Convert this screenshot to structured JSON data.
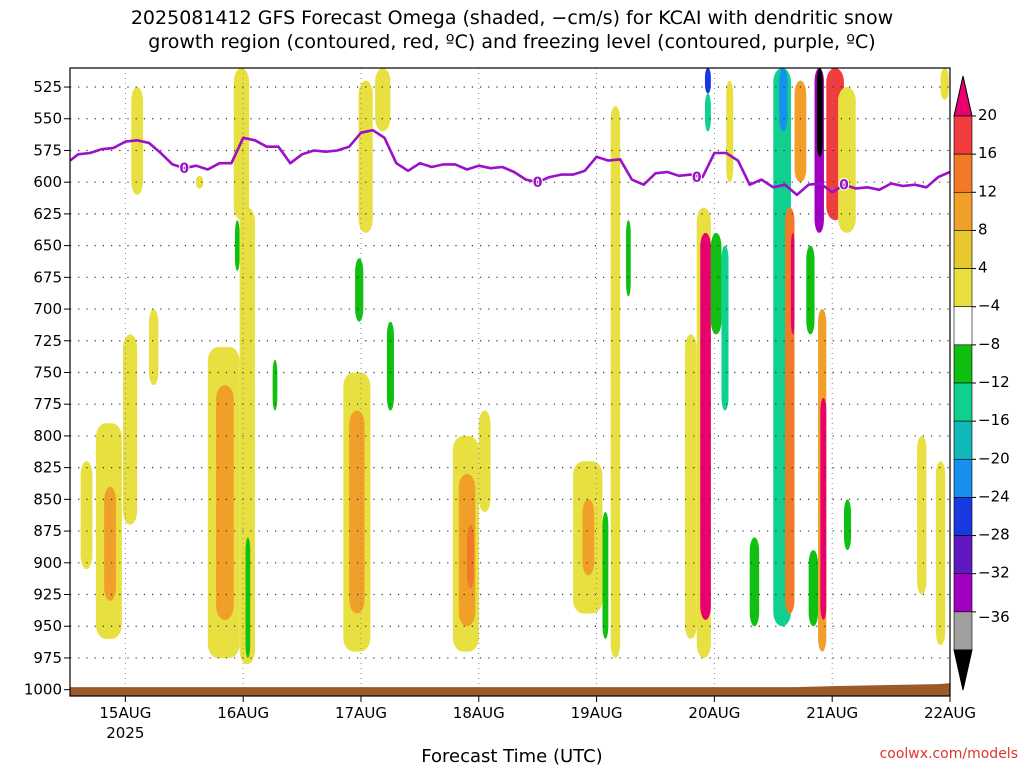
{
  "title_line1": "2025081412 GFS Forecast Omega (shaded, −cm/s) for KCAI with dendritic snow",
  "title_line2": "growth region (contoured, red, ºC) and freezing level (contoured, purple, ºC)",
  "xlabel": "Forecast Time (UTC)",
  "credit": "coolwx.com/models",
  "chart_data": {
    "type": "heatmap",
    "y_axis": {
      "label": "",
      "ticks": [
        525,
        550,
        575,
        600,
        625,
        650,
        675,
        700,
        725,
        750,
        775,
        800,
        825,
        850,
        875,
        900,
        925,
        950,
        975,
        1000
      ],
      "range": [
        510,
        1005
      ],
      "direction": "pressure (hPa) increasing downward"
    },
    "x_axis": {
      "ticks": [
        "15AUG",
        "16AUG",
        "17AUG",
        "18AUG",
        "19AUG",
        "20AUG",
        "21AUG",
        "22AUG"
      ],
      "tick_values": [
        15,
        16,
        17,
        18,
        19,
        20,
        21,
        22
      ],
      "sub_label": "2025",
      "range": [
        14.53,
        22.0
      ]
    },
    "colorbar": {
      "labels": [
        "20",
        "16",
        "12",
        "8",
        "4",
        "−4",
        "−8",
        "−12",
        "−16",
        "−20",
        "−24",
        "−28",
        "−32",
        "−36"
      ],
      "colors": [
        "#e8006e",
        "#f03c3c",
        "#f07a28",
        "#f0a028",
        "#e8c830",
        "#e8e040",
        "#ffffff",
        "#10c010",
        "#10d090",
        "#10b8b8",
        "#1890f0",
        "#1838e0",
        "#6018c0",
        "#a000c0",
        "#a0a0a0",
        "#000000"
      ]
    },
    "freezing_level_label": "0",
    "freezing_level": {
      "x": [
        14.53,
        14.6,
        14.7,
        14.8,
        14.9,
        15.0,
        15.1,
        15.2,
        15.3,
        15.4,
        15.5,
        15.6,
        15.7,
        15.8,
        15.9,
        16.0,
        16.1,
        16.2,
        16.3,
        16.4,
        16.5,
        16.6,
        16.7,
        16.8,
        16.9,
        17.0,
        17.1,
        17.2,
        17.3,
        17.4,
        17.5,
        17.6,
        17.7,
        17.8,
        17.9,
        18.0,
        18.1,
        18.2,
        18.3,
        18.4,
        18.5,
        18.6,
        18.7,
        18.8,
        18.9,
        19.0,
        19.1,
        19.2,
        19.3,
        19.4,
        19.5,
        19.6,
        19.7,
        19.8,
        19.9,
        20.0,
        20.1,
        20.2,
        20.3,
        20.4,
        20.5,
        20.6,
        20.7,
        20.8,
        20.9,
        21.0,
        21.1,
        21.2,
        21.3,
        21.4,
        21.5,
        21.6,
        21.7,
        21.8,
        21.9,
        22.0
      ],
      "y": [
        583,
        578,
        577,
        574,
        573,
        568,
        567,
        569,
        577,
        586,
        589,
        587,
        590,
        585,
        585,
        565,
        567,
        572,
        572,
        585,
        578,
        575,
        576,
        575,
        572,
        561,
        559,
        565,
        585,
        591,
        585,
        588,
        586,
        586,
        590,
        587,
        589,
        588,
        592,
        598,
        600,
        596,
        594,
        594,
        591,
        580,
        583,
        582,
        598,
        602,
        593,
        592,
        595,
        594,
        596,
        577,
        577,
        583,
        602,
        598,
        604,
        602,
        610,
        602,
        601,
        608,
        602,
        605,
        604,
        606,
        601,
        603,
        602,
        604,
        596,
        592
      ],
      "unit": "hPa"
    },
    "omega_regions": [
      {
        "x0": 14.62,
        "x1": 14.72,
        "y0": 820,
        "y1": 905,
        "value": 4
      },
      {
        "x0": 14.75,
        "x1": 14.97,
        "y0": 790,
        "y1": 960,
        "value": 4
      },
      {
        "x0": 14.82,
        "x1": 14.92,
        "y0": 840,
        "y1": 930,
        "value": 8
      },
      {
        "x0": 14.98,
        "x1": 15.1,
        "y0": 720,
        "y1": 870,
        "value": 4
      },
      {
        "x0": 15.05,
        "x1": 15.15,
        "y0": 525,
        "y1": 610,
        "value": 4
      },
      {
        "x0": 15.2,
        "x1": 15.28,
        "y0": 700,
        "y1": 760,
        "value": 4
      },
      {
        "x0": 15.6,
        "x1": 15.66,
        "y0": 595,
        "y1": 605,
        "value": -4
      },
      {
        "x0": 15.7,
        "x1": 15.97,
        "y0": 730,
        "y1": 975,
        "value": 4
      },
      {
        "x0": 15.77,
        "x1": 15.92,
        "y0": 760,
        "y1": 945,
        "value": 8
      },
      {
        "x0": 15.92,
        "x1": 16.05,
        "y0": 510,
        "y1": 630,
        "value": 4
      },
      {
        "x0": 15.93,
        "x1": 15.97,
        "y0": 630,
        "y1": 670,
        "value": -8
      },
      {
        "x0": 15.97,
        "x1": 16.1,
        "y0": 620,
        "y1": 980,
        "value": 4
      },
      {
        "x0": 16.02,
        "x1": 16.06,
        "y0": 880,
        "y1": 975,
        "value": -8
      },
      {
        "x0": 16.25,
        "x1": 16.29,
        "y0": 740,
        "y1": 780,
        "value": -8
      },
      {
        "x0": 16.85,
        "x1": 17.08,
        "y0": 750,
        "y1": 970,
        "value": 4
      },
      {
        "x0": 16.9,
        "x1": 17.03,
        "y0": 780,
        "y1": 940,
        "value": 8
      },
      {
        "x0": 16.95,
        "x1": 17.02,
        "y0": 660,
        "y1": 710,
        "value": -8
      },
      {
        "x0": 16.98,
        "x1": 17.1,
        "y0": 520,
        "y1": 640,
        "value": 4
      },
      {
        "x0": 17.12,
        "x1": 17.25,
        "y0": 510,
        "y1": 560,
        "value": 4
      },
      {
        "x0": 17.22,
        "x1": 17.28,
        "y0": 710,
        "y1": 780,
        "value": -8
      },
      {
        "x0": 17.78,
        "x1": 18.0,
        "y0": 800,
        "y1": 970,
        "value": 4
      },
      {
        "x0": 17.83,
        "x1": 17.97,
        "y0": 830,
        "y1": 950,
        "value": 8
      },
      {
        "x0": 17.9,
        "x1": 17.96,
        "y0": 870,
        "y1": 920,
        "value": 12
      },
      {
        "x0": 18.0,
        "x1": 18.1,
        "y0": 780,
        "y1": 860,
        "value": 4
      },
      {
        "x0": 18.8,
        "x1": 19.05,
        "y0": 820,
        "y1": 940,
        "value": 4
      },
      {
        "x0": 18.88,
        "x1": 18.98,
        "y0": 850,
        "y1": 910,
        "value": 8
      },
      {
        "x0": 19.05,
        "x1": 19.1,
        "y0": 860,
        "y1": 960,
        "value": -8
      },
      {
        "x0": 19.12,
        "x1": 19.2,
        "y0": 540,
        "y1": 975,
        "value": 4
      },
      {
        "x0": 19.25,
        "x1": 19.29,
        "y0": 630,
        "y1": 690,
        "value": -8
      },
      {
        "x0": 19.75,
        "x1": 19.85,
        "y0": 720,
        "y1": 960,
        "value": 4
      },
      {
        "x0": 19.85,
        "x1": 19.97,
        "y0": 620,
        "y1": 975,
        "value": 4
      },
      {
        "x0": 19.88,
        "x1": 19.97,
        "y0": 640,
        "y1": 945,
        "value": 20
      },
      {
        "x0": 19.92,
        "x1": 19.97,
        "y0": 510,
        "y1": 530,
        "value": -20
      },
      {
        "x0": 19.92,
        "x1": 19.97,
        "y0": 530,
        "y1": 560,
        "value": -12
      },
      {
        "x0": 19.97,
        "x1": 20.06,
        "y0": 640,
        "y1": 720,
        "value": -8
      },
      {
        "x0": 20.06,
        "x1": 20.12,
        "y0": 650,
        "y1": 780,
        "value": -12
      },
      {
        "x0": 20.1,
        "x1": 20.16,
        "y0": 520,
        "y1": 600,
        "value": 4
      },
      {
        "x0": 20.3,
        "x1": 20.38,
        "y0": 880,
        "y1": 950,
        "value": -8
      },
      {
        "x0": 20.5,
        "x1": 20.65,
        "y0": 510,
        "y1": 950,
        "value": -12
      },
      {
        "x0": 20.55,
        "x1": 20.62,
        "y0": 510,
        "y1": 560,
        "value": -16
      },
      {
        "x0": 20.6,
        "x1": 20.68,
        "y0": 620,
        "y1": 940,
        "value": 12
      },
      {
        "x0": 20.65,
        "x1": 20.68,
        "y0": 640,
        "y1": 720,
        "value": 20
      },
      {
        "x0": 20.68,
        "x1": 20.78,
        "y0": 520,
        "y1": 600,
        "value": 8
      },
      {
        "x0": 20.78,
        "x1": 20.85,
        "y0": 650,
        "y1": 720,
        "value": -8
      },
      {
        "x0": 20.8,
        "x1": 20.88,
        "y0": 890,
        "y1": 950,
        "value": -8
      },
      {
        "x0": 20.85,
        "x1": 20.93,
        "y0": 510,
        "y1": 640,
        "value": -28
      },
      {
        "x0": 20.87,
        "x1": 20.92,
        "y0": 510,
        "y1": 580,
        "value": -36
      },
      {
        "x0": 20.88,
        "x1": 20.95,
        "y0": 700,
        "y1": 970,
        "value": 8
      },
      {
        "x0": 20.9,
        "x1": 20.95,
        "y0": 770,
        "y1": 945,
        "value": 20
      },
      {
        "x0": 20.95,
        "x1": 21.1,
        "y0": 510,
        "y1": 630,
        "value": 16
      },
      {
        "x0": 21.05,
        "x1": 21.2,
        "y0": 525,
        "y1": 640,
        "value": 4
      },
      {
        "x0": 21.1,
        "x1": 21.16,
        "y0": 850,
        "y1": 890,
        "value": -8
      },
      {
        "x0": 21.72,
        "x1": 21.8,
        "y0": 800,
        "y1": 925,
        "value": 4
      },
      {
        "x0": 21.88,
        "x1": 21.96,
        "y0": 820,
        "y1": 965,
        "value": 4
      },
      {
        "x0": 21.92,
        "x1": 21.99,
        "y0": 510,
        "y1": 535,
        "value": 4
      }
    ],
    "surface": {
      "color": "#9a5a2a",
      "pressure_top": 998
    }
  }
}
